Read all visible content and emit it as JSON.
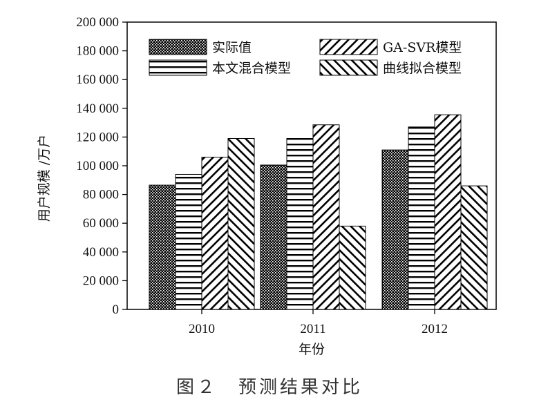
{
  "figure": {
    "caption": "图２　预测结果对比"
  },
  "chart_data": {
    "type": "bar",
    "xlabel": "年份",
    "ylabel": "用户规模 /万户",
    "categories": [
      "2010",
      "2011",
      "2012"
    ],
    "ylim": [
      0,
      200000
    ],
    "yticks": [
      0,
      20000,
      40000,
      60000,
      80000,
      100000,
      120000,
      140000,
      160000,
      180000,
      200000
    ],
    "ytick_labels": [
      "0",
      "20 000",
      "40 000",
      "60 000",
      "80 000",
      "100 000",
      "120 000",
      "140 000",
      "160 000",
      "180 000",
      "200 000"
    ],
    "legend_position": "top",
    "grid": false,
    "series": [
      {
        "name": "实际值",
        "values": [
          86500,
          100500,
          111000
        ],
        "pattern": "dots"
      },
      {
        "name": "本文混合模型",
        "values": [
          94000,
          119000,
          127000
        ],
        "pattern": "horizontal"
      },
      {
        "name": "GA-SVR模型",
        "values": [
          106000,
          128500,
          135500
        ],
        "pattern": "diag-up"
      },
      {
        "name": "曲线拟合模型",
        "values": [
          119000,
          58000,
          86000
        ],
        "pattern": "diag-down"
      }
    ]
  }
}
